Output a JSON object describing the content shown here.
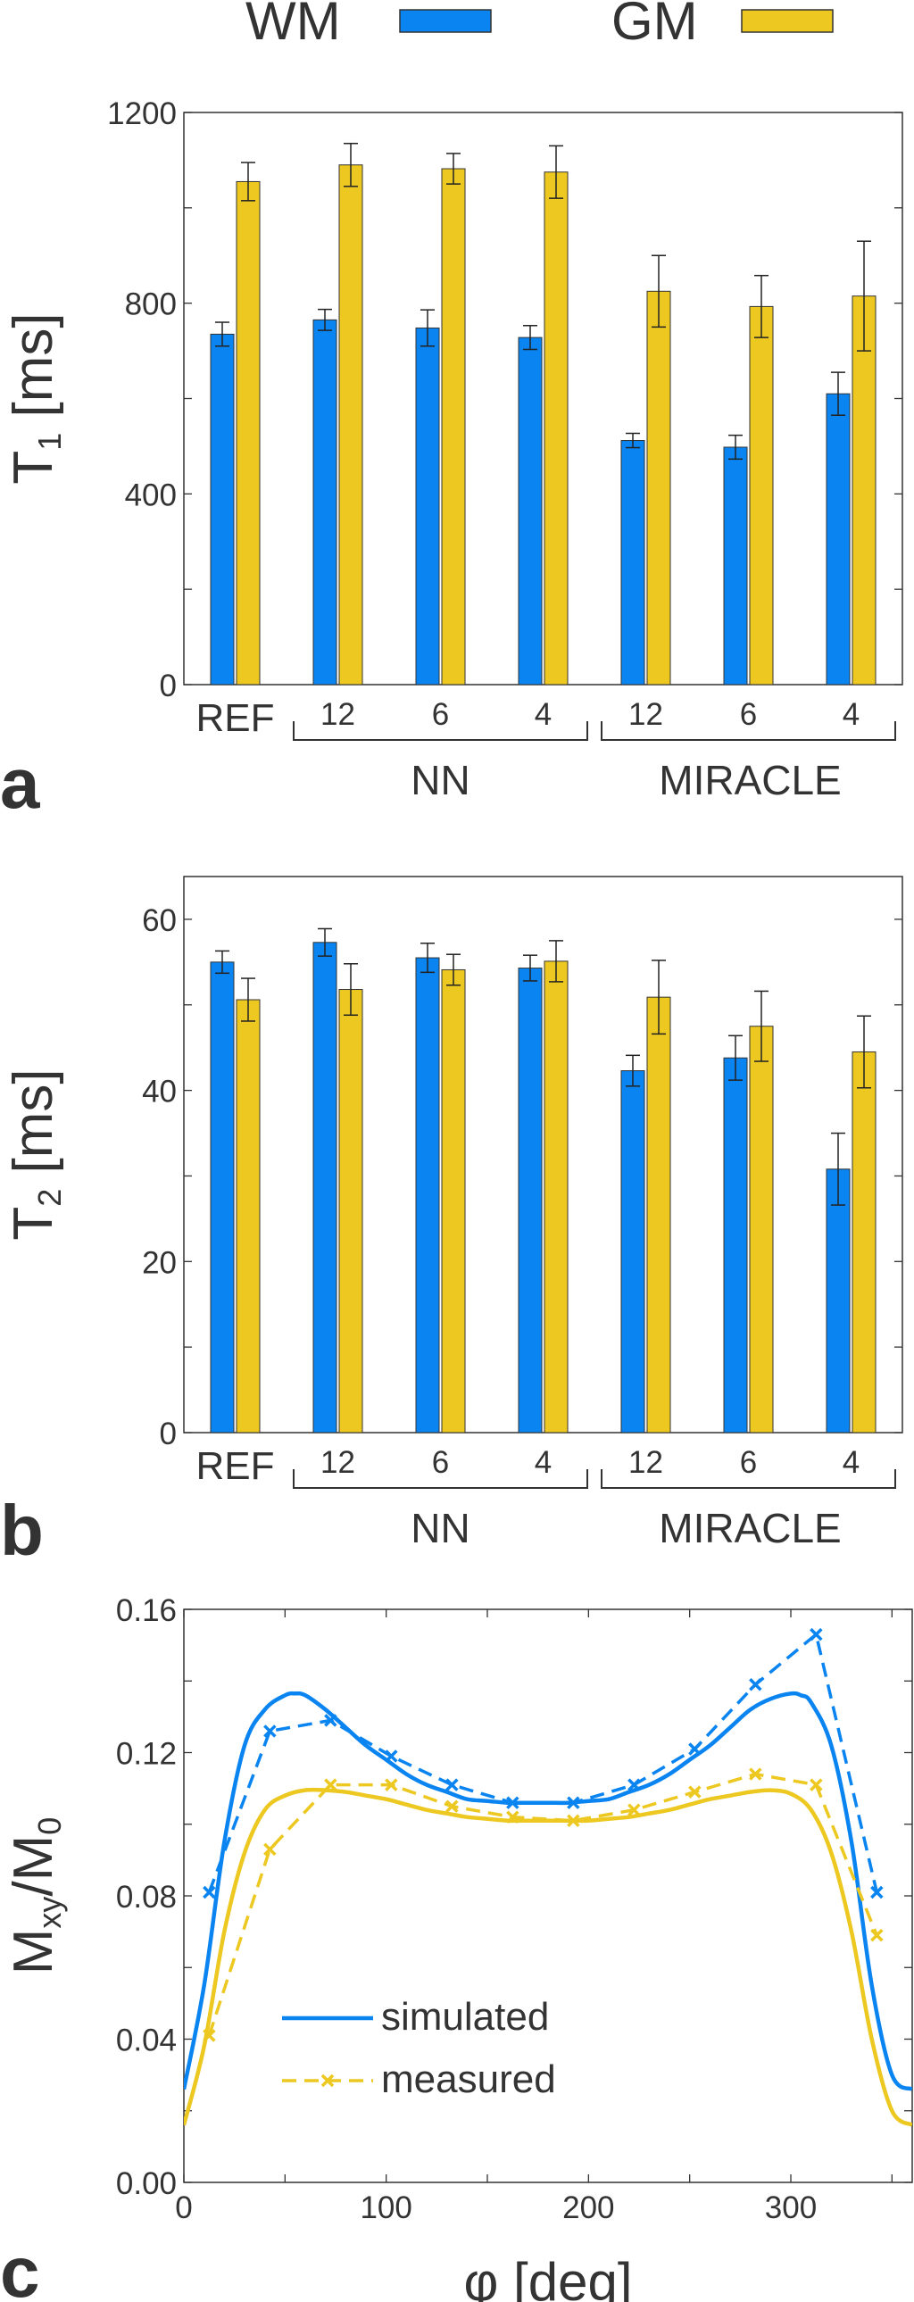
{
  "colors": {
    "wm": "#0a84f0",
    "gm": "#ecc821",
    "axis": "#333333"
  },
  "legend": {
    "wm_label": "WM",
    "gm_label": "GM"
  },
  "chart_data": [
    {
      "panel": "a",
      "type": "bar",
      "ylabel": "T",
      "ylabel_sub": "1",
      "ylabel_unit": " [ms]",
      "ylim": [
        0,
        1200
      ],
      "yticks": [
        0,
        400,
        800,
        1200
      ],
      "ref_label": "REF",
      "categories": [
        "REF",
        "12",
        "6",
        "4",
        "12",
        "6",
        "4"
      ],
      "groups": [
        {
          "label": "NN",
          "categories": [
            "12",
            "6",
            "4"
          ]
        },
        {
          "label": "MIRACLE",
          "categories": [
            "12",
            "6",
            "4"
          ]
        }
      ],
      "series": [
        {
          "name": "WM",
          "values": [
            735,
            765,
            748,
            728,
            512,
            498,
            610
          ],
          "errors": [
            25,
            22,
            38,
            25,
            15,
            25,
            45
          ]
        },
        {
          "name": "GM",
          "values": [
            1055,
            1090,
            1082,
            1075,
            825,
            793,
            815
          ],
          "errors": [
            40,
            45,
            32,
            55,
            75,
            65,
            115
          ]
        }
      ]
    },
    {
      "panel": "b",
      "type": "bar",
      "ylabel": "T",
      "ylabel_sub": "2",
      "ylabel_unit": " [ms]",
      "ylim": [
        0,
        65
      ],
      "yticks": [
        0,
        20,
        40,
        60
      ],
      "ref_label": "REF",
      "categories": [
        "REF",
        "12",
        "6",
        "4",
        "12",
        "6",
        "4"
      ],
      "groups": [
        {
          "label": "NN",
          "categories": [
            "12",
            "6",
            "4"
          ]
        },
        {
          "label": "MIRACLE",
          "categories": [
            "12",
            "6",
            "4"
          ]
        }
      ],
      "series": [
        {
          "name": "WM",
          "values": [
            55.0,
            57.3,
            55.5,
            54.3,
            42.3,
            43.8,
            30.8
          ],
          "errors": [
            1.3,
            1.6,
            1.7,
            1.5,
            1.8,
            2.6,
            4.2
          ]
        },
        {
          "name": "GM",
          "values": [
            50.6,
            51.8,
            54.1,
            55.1,
            50.9,
            47.5,
            44.5
          ],
          "errors": [
            2.5,
            3.0,
            1.8,
            2.4,
            4.3,
            4.1,
            4.2
          ]
        }
      ]
    },
    {
      "panel": "c",
      "type": "line",
      "ylabel": "M",
      "ylabel_sub": "xy",
      "ylabel_mid": "/M",
      "ylabel_sub2": "0",
      "xlabel": "φ [deg]",
      "xlim": [
        0,
        360
      ],
      "ylim": [
        0,
        0.16
      ],
      "xticks": [
        0,
        100,
        200,
        300
      ],
      "yticks": [
        "0.00",
        "0.04",
        "0.08",
        "0.12",
        "0.16"
      ],
      "legend_simulated": "simulated",
      "legend_measured": "measured",
      "series": [
        {
          "name": "simulated WM",
          "style": "solid",
          "tissue": "WM",
          "x": [
            0,
            10,
            20,
            30,
            40,
            50,
            55,
            60,
            70,
            80,
            90,
            100,
            110,
            120,
            130,
            140,
            150,
            160,
            170,
            180,
            190,
            200,
            210,
            220,
            230,
            240,
            250,
            260,
            270,
            280,
            290,
            300,
            305,
            310,
            320,
            330,
            340,
            350,
            360
          ],
          "y": [
            0.026,
            0.055,
            0.095,
            0.122,
            0.132,
            0.136,
            0.1365,
            0.136,
            0.132,
            0.127,
            0.122,
            0.118,
            0.114,
            0.111,
            0.109,
            0.107,
            0.1065,
            0.106,
            0.106,
            0.106,
            0.106,
            0.1065,
            0.107,
            0.109,
            0.111,
            0.114,
            0.118,
            0.122,
            0.127,
            0.132,
            0.135,
            0.1365,
            0.136,
            0.134,
            0.122,
            0.095,
            0.055,
            0.03,
            0.026
          ]
        },
        {
          "name": "simulated GM",
          "style": "solid",
          "tissue": "GM",
          "x": [
            0,
            10,
            20,
            30,
            40,
            50,
            60,
            70,
            80,
            90,
            100,
            110,
            120,
            130,
            140,
            150,
            160,
            170,
            180,
            190,
            200,
            210,
            220,
            230,
            240,
            250,
            260,
            270,
            280,
            290,
            300,
            310,
            320,
            330,
            340,
            350,
            360
          ],
          "y": [
            0.016,
            0.038,
            0.07,
            0.092,
            0.104,
            0.108,
            0.1095,
            0.1095,
            0.109,
            0.108,
            0.107,
            0.1055,
            0.104,
            0.103,
            0.102,
            0.1015,
            0.101,
            0.101,
            0.101,
            0.101,
            0.101,
            0.1015,
            0.102,
            0.103,
            0.104,
            0.1055,
            0.107,
            0.108,
            0.109,
            0.1095,
            0.1085,
            0.104,
            0.092,
            0.07,
            0.04,
            0.02,
            0.016
          ]
        },
        {
          "name": "measured WM",
          "style": "dashed",
          "tissue": "WM",
          "x": [
            12.5,
            42.5,
            72.5,
            102.5,
            132.5,
            162.5,
            192.5,
            222.5,
            252.5,
            282.5,
            312.5,
            342.5
          ],
          "y": [
            0.081,
            0.126,
            0.129,
            0.119,
            0.111,
            0.106,
            0.106,
            0.111,
            0.121,
            0.139,
            0.153,
            0.081
          ]
        },
        {
          "name": "measured GM",
          "style": "dashed",
          "tissue": "GM",
          "x": [
            12.5,
            42.5,
            72.5,
            102.5,
            132.5,
            162.5,
            192.5,
            222.5,
            252.5,
            282.5,
            312.5,
            342.5
          ],
          "y": [
            0.041,
            0.093,
            0.111,
            0.111,
            0.105,
            0.102,
            0.101,
            0.104,
            0.109,
            0.114,
            0.111,
            0.069
          ]
        }
      ]
    }
  ],
  "panel_labels": {
    "a": "a",
    "b": "b",
    "c": "c"
  }
}
